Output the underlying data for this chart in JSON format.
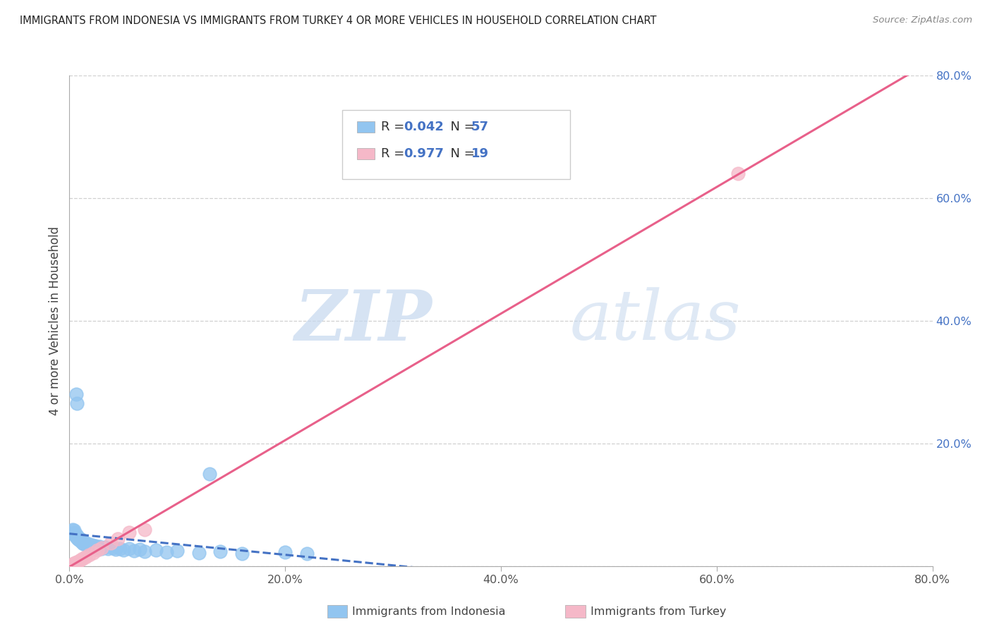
{
  "title": "IMMIGRANTS FROM INDONESIA VS IMMIGRANTS FROM TURKEY 4 OR MORE VEHICLES IN HOUSEHOLD CORRELATION CHART",
  "source": "Source: ZipAtlas.com",
  "ylabel": "4 or more Vehicles in Household",
  "xlim": [
    0,
    0.8
  ],
  "ylim": [
    0,
    0.8
  ],
  "xtick_labels": [
    "0.0%",
    "20.0%",
    "40.0%",
    "60.0%",
    "80.0%"
  ],
  "xtick_values": [
    0.0,
    0.2,
    0.4,
    0.6,
    0.8
  ],
  "ytick_labels": [
    "",
    "20.0%",
    "40.0%",
    "60.0%",
    "80.0%"
  ],
  "ytick_values": [
    0.0,
    0.2,
    0.4,
    0.6,
    0.8
  ],
  "legend_labels": [
    "Immigrants from Indonesia",
    "Immigrants from Turkey"
  ],
  "r_indonesia": 0.042,
  "n_indonesia": 57,
  "r_turkey": 0.977,
  "n_turkey": 19,
  "color_indonesia": "#92C5F0",
  "color_turkey": "#F5B8C8",
  "line_color_indonesia": "#4472C4",
  "line_color_turkey": "#E8608A",
  "watermark_zip": "ZIP",
  "watermark_atlas": "atlas",
  "grid_color": "#D0D0D0",
  "indonesia_x": [
    0.003,
    0.004,
    0.004,
    0.005,
    0.005,
    0.006,
    0.006,
    0.007,
    0.007,
    0.008,
    0.008,
    0.009,
    0.009,
    0.01,
    0.01,
    0.011,
    0.011,
    0.012,
    0.012,
    0.013,
    0.013,
    0.014,
    0.014,
    0.015,
    0.015,
    0.016,
    0.017,
    0.018,
    0.019,
    0.02,
    0.021,
    0.022,
    0.024,
    0.026,
    0.028,
    0.03,
    0.033,
    0.036,
    0.04,
    0.043,
    0.047,
    0.05,
    0.055,
    0.06,
    0.065,
    0.07,
    0.08,
    0.09,
    0.1,
    0.12,
    0.14,
    0.16,
    0.2,
    0.22,
    0.006,
    0.007,
    0.13
  ],
  "indonesia_y": [
    0.06,
    0.055,
    0.058,
    0.05,
    0.052,
    0.048,
    0.051,
    0.046,
    0.049,
    0.044,
    0.047,
    0.043,
    0.045,
    0.041,
    0.044,
    0.04,
    0.043,
    0.038,
    0.041,
    0.037,
    0.04,
    0.036,
    0.039,
    0.035,
    0.038,
    0.034,
    0.036,
    0.033,
    0.035,
    0.032,
    0.034,
    0.031,
    0.033,
    0.03,
    0.032,
    0.029,
    0.031,
    0.028,
    0.03,
    0.027,
    0.029,
    0.026,
    0.028,
    0.025,
    0.027,
    0.024,
    0.026,
    0.023,
    0.025,
    0.022,
    0.024,
    0.021,
    0.023,
    0.02,
    0.28,
    0.265,
    0.15
  ],
  "turkey_x": [
    0.002,
    0.003,
    0.004,
    0.005,
    0.006,
    0.007,
    0.008,
    0.01,
    0.012,
    0.015,
    0.018,
    0.022,
    0.026,
    0.03,
    0.038,
    0.045,
    0.055,
    0.07,
    0.62
  ],
  "turkey_y": [
    0.002,
    0.003,
    0.004,
    0.005,
    0.006,
    0.007,
    0.008,
    0.01,
    0.012,
    0.015,
    0.018,
    0.022,
    0.026,
    0.03,
    0.038,
    0.045,
    0.055,
    0.06,
    0.64
  ]
}
